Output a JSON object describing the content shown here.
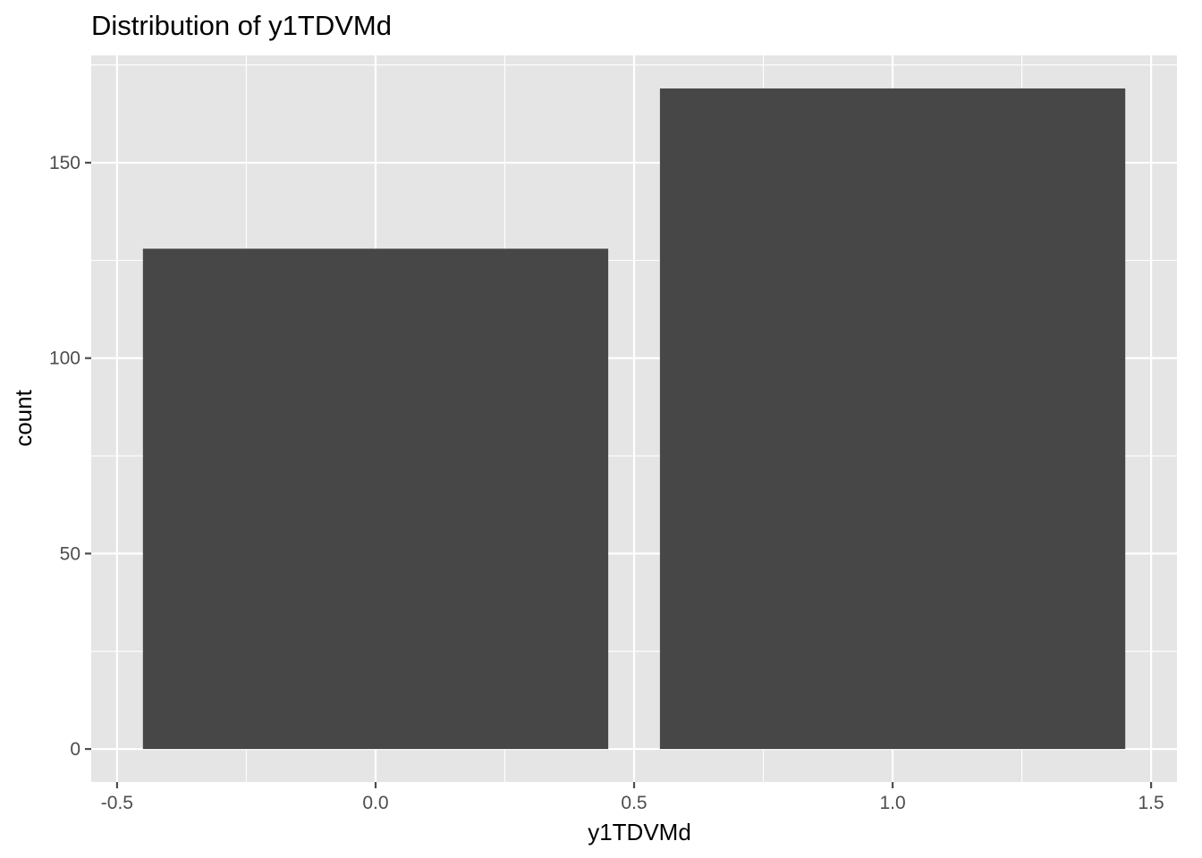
{
  "chart_data": {
    "type": "bar",
    "title": "Distribution of y1TDVMd",
    "xlabel": "y1TDVMd",
    "ylabel": "count",
    "bars": [
      {
        "x": 0,
        "value": 128
      },
      {
        "x": 1,
        "value": 169
      }
    ],
    "bar_width": 0.9,
    "xlim": [
      -0.55,
      1.55
    ],
    "ylim": [
      -8.45,
      177.45
    ],
    "x_ticks": [
      -0.5,
      0.0,
      0.5,
      1.0,
      1.5
    ],
    "x_tick_labels": [
      "-0.5",
      "0.0",
      "0.5",
      "1.0",
      "1.5"
    ],
    "x_minor_ticks": [
      -0.25,
      0.25,
      0.75,
      1.25
    ],
    "y_ticks": [
      0,
      50,
      100,
      150
    ],
    "y_tick_labels": [
      "0",
      "50",
      "100",
      "150"
    ],
    "y_minor_ticks": [
      25,
      75,
      125,
      175
    ],
    "grid": true,
    "legend": "none",
    "colors": {
      "bar": "#474747",
      "panel": "#e5e5e5",
      "grid": "#ffffff",
      "tick": "#4d4d4d"
    }
  }
}
